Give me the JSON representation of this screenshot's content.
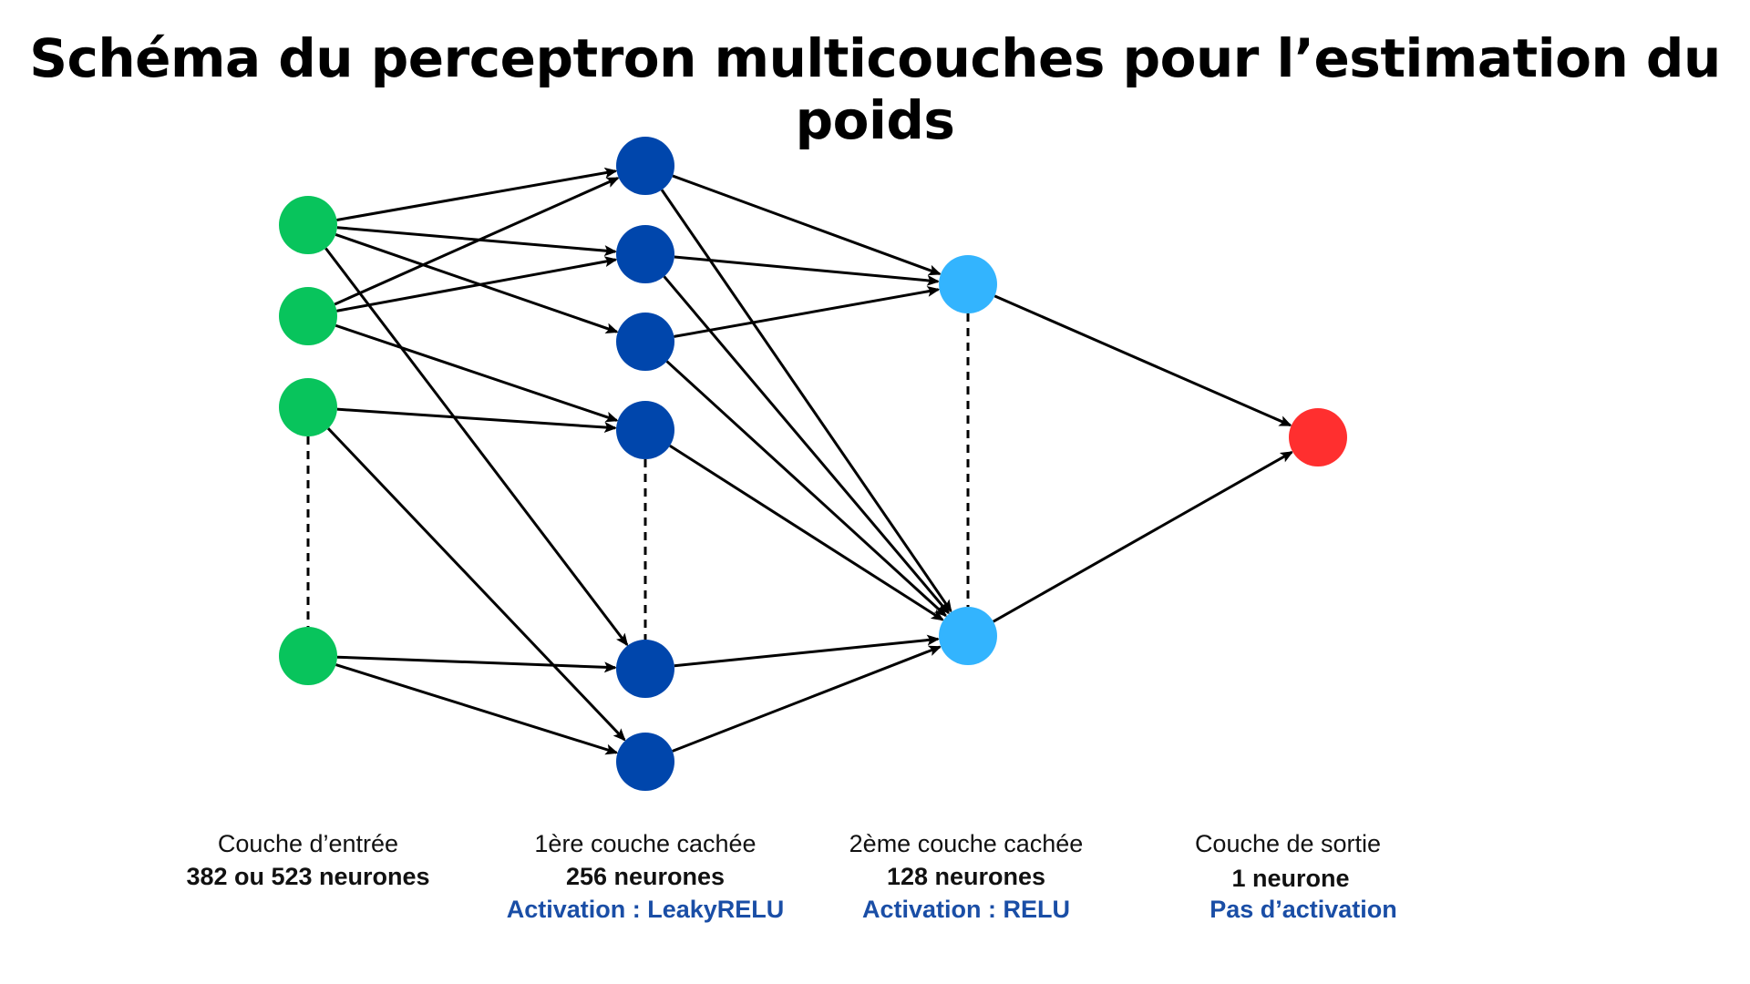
{
  "title": "Schéma du perceptron multicouches pour l’estimation du poids",
  "colors": {
    "input_neuron": "#08c45c",
    "hidden1_neuron": "#0046ac",
    "hidden2_neuron": "#33b4fe",
    "output_neuron": "#ff2f2f",
    "edge": "#000000",
    "activation_text": "#1a4ea6"
  },
  "layers": [
    {
      "id": "input",
      "name": "Couche d’entrée",
      "count": "382 ou 523 neurones",
      "activation": "",
      "shown_neurons": 4,
      "ellipsis_after": 3
    },
    {
      "id": "hidden1",
      "name": "1ère couche cachée",
      "count": "256 neurones",
      "activation": "Activation : LeakyRELU",
      "shown_neurons": 6,
      "ellipsis_after": 4
    },
    {
      "id": "hidden2",
      "name": "2ème couche cachée",
      "count": "128 neurones",
      "activation": "Activation : RELU",
      "shown_neurons": 2,
      "ellipsis_after": 1
    },
    {
      "id": "output",
      "name": "Couche de sortie",
      "count": "1 neurone",
      "activation": "Pas d’activation",
      "shown_neurons": 1,
      "ellipsis_after": 0
    }
  ],
  "connections": [
    [
      "input.1",
      "hidden1.1"
    ],
    [
      "input.1",
      "hidden1.2"
    ],
    [
      "input.1",
      "hidden1.3"
    ],
    [
      "input.1",
      "hidden1.5"
    ],
    [
      "input.2",
      "hidden1.1"
    ],
    [
      "input.2",
      "hidden1.2"
    ],
    [
      "input.2",
      "hidden1.4"
    ],
    [
      "input.3",
      "hidden1.4"
    ],
    [
      "input.3",
      "hidden1.6"
    ],
    [
      "input.4",
      "hidden1.5"
    ],
    [
      "input.4",
      "hidden1.6"
    ],
    [
      "hidden1.1",
      "hidden2.1"
    ],
    [
      "hidden1.1",
      "hidden2.2"
    ],
    [
      "hidden1.2",
      "hidden2.1"
    ],
    [
      "hidden1.2",
      "hidden2.2"
    ],
    [
      "hidden1.3",
      "hidden2.1"
    ],
    [
      "hidden1.3",
      "hidden2.2"
    ],
    [
      "hidden1.4",
      "hidden2.2"
    ],
    [
      "hidden1.5",
      "hidden2.2"
    ],
    [
      "hidden1.6",
      "hidden2.2"
    ],
    [
      "hidden2.1",
      "output.1"
    ],
    [
      "hidden2.2",
      "output.1"
    ]
  ]
}
